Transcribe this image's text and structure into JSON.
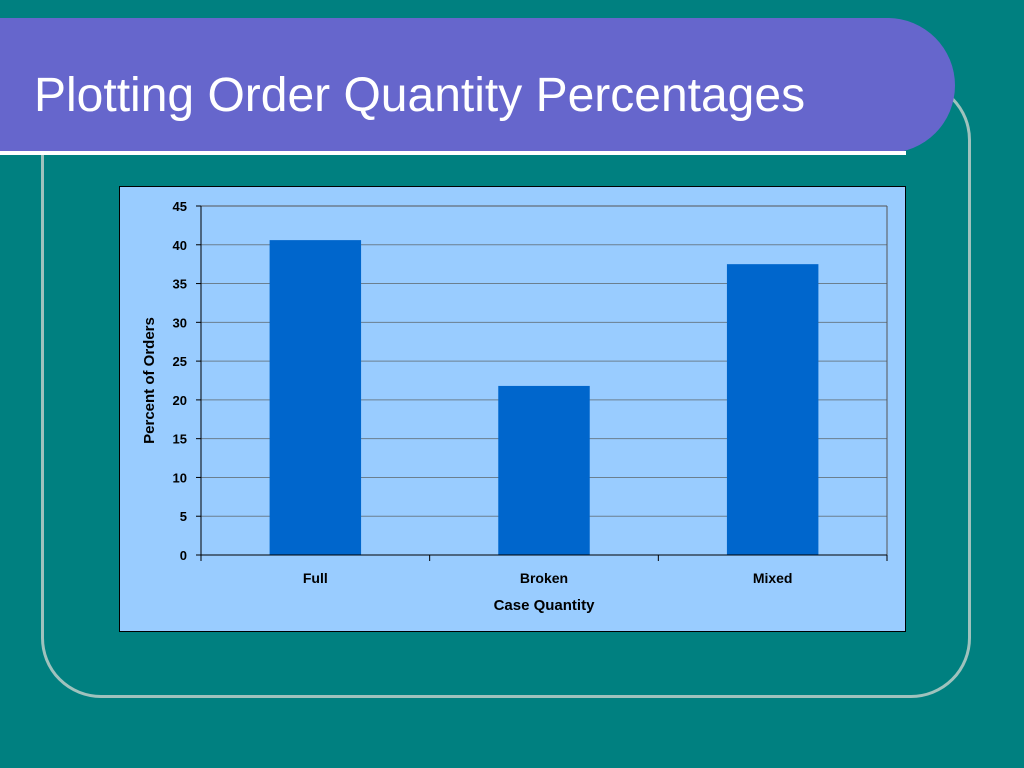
{
  "slide": {
    "title": "Plotting Order Quantity Percentages"
  },
  "colors": {
    "background": "#008080",
    "title_banner": "#6666cc",
    "title_text": "#ffffff",
    "plot_area": "#99ccff",
    "bar_fill": "#0066cc",
    "frame_outline": "#9fc2bd"
  },
  "chart_data": {
    "type": "bar",
    "categories": [
      "Full",
      "Broken",
      "Mixed"
    ],
    "values": [
      40.6,
      21.8,
      37.5
    ],
    "xlabel": "Case Quantity",
    "ylabel": "Percent of Orders",
    "ylim": [
      0,
      45
    ],
    "yticks": [
      "0",
      "5",
      "10",
      "15",
      "20",
      "25",
      "30",
      "35",
      "40",
      "45"
    ],
    "grid": true,
    "legend": "none"
  }
}
